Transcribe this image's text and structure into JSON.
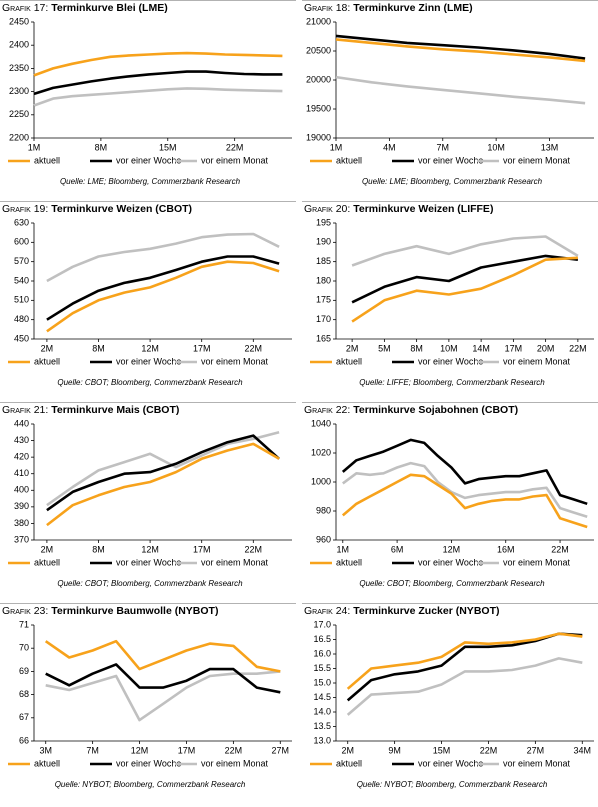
{
  "chart_data": [
    {
      "type": "line",
      "label": "Grafik 17:",
      "title": "Terminkurve Blei (LME)",
      "x": [
        1,
        3,
        5,
        7,
        9,
        11,
        13,
        15,
        17,
        19,
        21,
        23,
        25,
        27
      ],
      "xlim": [
        1,
        28
      ],
      "xticks": [
        {
          "value": 1,
          "label": "1M"
        },
        {
          "value": 8,
          "label": "8M"
        },
        {
          "value": 15,
          "label": "15M"
        },
        {
          "value": 22,
          "label": "22M"
        }
      ],
      "ylim": [
        2200,
        2450
      ],
      "yticks": [
        2200,
        2250,
        2300,
        2350,
        2400,
        2450
      ],
      "series": [
        {
          "name": "aktuell",
          "color": "#f7a21b",
          "values": [
            2335,
            2350,
            2360,
            2368,
            2375,
            2378,
            2380,
            2382,
            2383,
            2382,
            2380,
            2379,
            2378,
            2377
          ]
        },
        {
          "name": "vor einer Woche",
          "color": "#000000",
          "values": [
            2295,
            2308,
            2315,
            2322,
            2328,
            2333,
            2337,
            2340,
            2343,
            2343,
            2340,
            2338,
            2337,
            2337
          ]
        },
        {
          "name": "vor einem Monat",
          "color": "#c0c0c0",
          "values": [
            2270,
            2285,
            2290,
            2293,
            2296,
            2299,
            2302,
            2305,
            2307,
            2306,
            2304,
            2303,
            2302,
            2301
          ]
        }
      ],
      "source": "Quelle: LME; Bloomberg, Commerzbank Research"
    },
    {
      "type": "line",
      "label": "Grafik 18:",
      "title": "Terminkurve Zinn (LME)",
      "x": [
        1,
        3,
        5,
        7,
        9,
        11,
        13,
        15
      ],
      "xlim": [
        1,
        15.5
      ],
      "xticks": [
        {
          "value": 1,
          "label": "1M"
        },
        {
          "value": 4,
          "label": "4M"
        },
        {
          "value": 7,
          "label": "7M"
        },
        {
          "value": 10,
          "label": "10M"
        },
        {
          "value": 13,
          "label": "13M"
        }
      ],
      "ylim": [
        19000,
        21000
      ],
      "yticks": [
        19000,
        19500,
        20000,
        20500,
        21000
      ],
      "series": [
        {
          "name": "aktuell",
          "color": "#f7a21b",
          "values": [
            20700,
            20640,
            20580,
            20530,
            20490,
            20440,
            20390,
            20330
          ]
        },
        {
          "name": "vor einer Woche",
          "color": "#000000",
          "values": [
            20760,
            20700,
            20640,
            20600,
            20560,
            20510,
            20450,
            20370
          ]
        },
        {
          "name": "vor einem Monat",
          "color": "#c0c0c0",
          "values": [
            20050,
            19960,
            19890,
            19830,
            19770,
            19710,
            19660,
            19600
          ]
        }
      ],
      "source": "Quelle: LME; Bloomberg, Commerzbank Research"
    },
    {
      "type": "line",
      "label": "Grafik 19:",
      "title": "Terminkurve Weizen (CBOT)",
      "categories": [
        "2M",
        null,
        "8M",
        null,
        "12M",
        null,
        "17M",
        null,
        "22M",
        null
      ],
      "ylim": [
        450,
        630
      ],
      "yticks": [
        450,
        480,
        510,
        540,
        570,
        600,
        630
      ],
      "series": [
        {
          "name": "aktuell",
          "color": "#f7a21b",
          "values": [
            462,
            490,
            510,
            522,
            530,
            545,
            562,
            570,
            568,
            555
          ]
        },
        {
          "name": "vor einer Woche",
          "color": "#000000",
          "values": [
            480,
            505,
            525,
            537,
            545,
            557,
            570,
            578,
            578,
            567
          ]
        },
        {
          "name": "vor einem Monat",
          "color": "#c0c0c0",
          "values": [
            540,
            562,
            578,
            585,
            590,
            598,
            608,
            612,
            613,
            593
          ]
        }
      ],
      "source": "Quelle: CBOT; Bloomberg, Commerzbank Research"
    },
    {
      "type": "line",
      "label": "Grafik 20:",
      "title": "Terminkurve Weizen (LIFFE)",
      "categories": [
        "2M",
        "5M",
        "8M",
        "10M",
        "14M",
        "17M",
        "20M",
        "22M"
      ],
      "ylim": [
        165,
        195
      ],
      "yticks": [
        165,
        170,
        175,
        180,
        185,
        190,
        195
      ],
      "series": [
        {
          "name": "aktuell",
          "color": "#f7a21b",
          "values": [
            169.5,
            175,
            177.5,
            176.5,
            178,
            181.5,
            185.5,
            186
          ]
        },
        {
          "name": "vor einer Woche",
          "color": "#000000",
          "values": [
            174.5,
            178.5,
            181,
            180,
            183.5,
            185,
            186.5,
            185.5
          ]
        },
        {
          "name": "vor einem Monat",
          "color": "#c0c0c0",
          "values": [
            184,
            187,
            189,
            187,
            189.5,
            191,
            191.5,
            186.5
          ]
        }
      ],
      "source": "Quelle: LIFFE; Bloomberg, Commerzbank Research"
    },
    {
      "type": "line",
      "label": "Grafik 21:",
      "title": "Terminkurve Mais (CBOT)",
      "categories": [
        "2M",
        null,
        "8M",
        null,
        "12M",
        null,
        "17M",
        null,
        "22M",
        null
      ],
      "ylim": [
        370,
        440
      ],
      "yticks": [
        370,
        380,
        390,
        400,
        410,
        420,
        430,
        440
      ],
      "series": [
        {
          "name": "aktuell",
          "color": "#f7a21b",
          "values": [
            379,
            391,
            397,
            402,
            405,
            411,
            419,
            424,
            428,
            419
          ]
        },
        {
          "name": "vor einer Woche",
          "color": "#000000",
          "values": [
            388,
            399,
            405,
            410,
            411,
            416,
            423,
            429,
            433,
            419
          ]
        },
        {
          "name": "vor einem Monat",
          "color": "#c0c0c0",
          "values": [
            391,
            402,
            412,
            417,
            422,
            414,
            421,
            428,
            431,
            435
          ]
        }
      ],
      "source": "Quelle: CBOT; Bloomberg, Commerzbank Research"
    },
    {
      "type": "line",
      "label": "Grafik 22:",
      "title": "Terminkurve Sojabohnen (CBOT)",
      "categories": [
        "1M",
        null,
        null,
        null,
        "6M",
        null,
        null,
        null,
        "12M",
        null,
        null,
        null,
        "16M",
        null,
        null,
        null,
        "22M",
        null,
        null
      ],
      "ylim": [
        960,
        1040
      ],
      "yticks": [
        960,
        980,
        1000,
        1020,
        1040
      ],
      "series": [
        {
          "name": "aktuell",
          "color": "#f7a21b",
          "values": [
            977,
            985,
            990,
            995,
            1000,
            1005,
            1004,
            998,
            992,
            982,
            985,
            987,
            988,
            988,
            990,
            991,
            975,
            972,
            969
          ]
        },
        {
          "name": "vor einer Woche",
          "color": "#000000",
          "values": [
            1007,
            1015,
            1018,
            1021,
            1025,
            1029,
            1027,
            1018,
            1010,
            999,
            1002,
            1003,
            1004,
            1004,
            1006,
            1008,
            991,
            988,
            985
          ]
        },
        {
          "name": "vor einem Monat",
          "color": "#c0c0c0",
          "values": [
            999,
            1006,
            1005,
            1006,
            1010,
            1013,
            1011,
            1000,
            993,
            989,
            991,
            992,
            993,
            993,
            995,
            996,
            982,
            979,
            976
          ]
        }
      ],
      "source": "Quelle: CBOT; Bloomberg, Commerzbank Research"
    },
    {
      "type": "line",
      "label": "Grafik 23:",
      "title": "Terminkurve Baumwolle (NYBOT)",
      "categories": [
        "3M",
        null,
        "7M",
        null,
        "12M",
        null,
        "17M",
        null,
        "22M",
        null,
        "27M"
      ],
      "ylim": [
        66,
        71
      ],
      "yticks": [
        66,
        67,
        68,
        69,
        70,
        71
      ],
      "series": [
        {
          "name": "aktuell",
          "color": "#f7a21b",
          "values": [
            70.3,
            69.6,
            69.9,
            70.3,
            69.1,
            69.5,
            69.9,
            70.2,
            70.1,
            69.2,
            69.0
          ]
        },
        {
          "name": "vor einer Woche",
          "color": "#000000",
          "values": [
            68.9,
            68.4,
            68.9,
            69.3,
            68.3,
            68.3,
            68.6,
            69.1,
            69.1,
            68.3,
            68.1
          ]
        },
        {
          "name": "vor einem Monat",
          "color": "#c0c0c0",
          "values": [
            68.4,
            68.2,
            68.5,
            68.8,
            66.9,
            67.6,
            68.3,
            68.8,
            68.9,
            68.9,
            69.0
          ]
        }
      ],
      "source": "Quelle: NYBOT; Bloomberg, Commerzbank Research"
    },
    {
      "type": "line",
      "label": "Grafik 24:",
      "title": "Terminkurve Zucker (NYBOT)",
      "categories": [
        "2M",
        null,
        "9M",
        null,
        "15M",
        null,
        "22M",
        null,
        "27M",
        null,
        "34M"
      ],
      "ylim": [
        13,
        17
      ],
      "yticks": [
        {
          "value": 13,
          "label": "13.0"
        },
        {
          "value": 13.5,
          "label": "13.5"
        },
        {
          "value": 14,
          "label": "14.0"
        },
        {
          "value": 14.5,
          "label": "14.5"
        },
        {
          "value": 15,
          "label": "15.0"
        },
        {
          "value": 15.5,
          "label": "15.5"
        },
        {
          "value": 16,
          "label": "16.0"
        },
        {
          "value": 16.5,
          "label": "16.5"
        },
        {
          "value": 17,
          "label": "17.0"
        }
      ],
      "series": [
        {
          "name": "aktuell",
          "color": "#f7a21b",
          "values": [
            14.8,
            15.5,
            15.6,
            15.7,
            15.9,
            16.4,
            16.35,
            16.4,
            16.5,
            16.7,
            16.6
          ]
        },
        {
          "name": "vor einer Woche",
          "color": "#000000",
          "values": [
            14.4,
            15.1,
            15.3,
            15.4,
            15.6,
            16.25,
            16.25,
            16.3,
            16.45,
            16.7,
            16.65
          ]
        },
        {
          "name": "vor einem Monat",
          "color": "#c0c0c0",
          "values": [
            13.9,
            14.6,
            14.65,
            14.7,
            14.95,
            15.4,
            15.4,
            15.45,
            15.6,
            15.85,
            15.7
          ]
        }
      ],
      "source": "Quelle: NYBOT; Bloomberg, Commerzbank Research"
    }
  ]
}
